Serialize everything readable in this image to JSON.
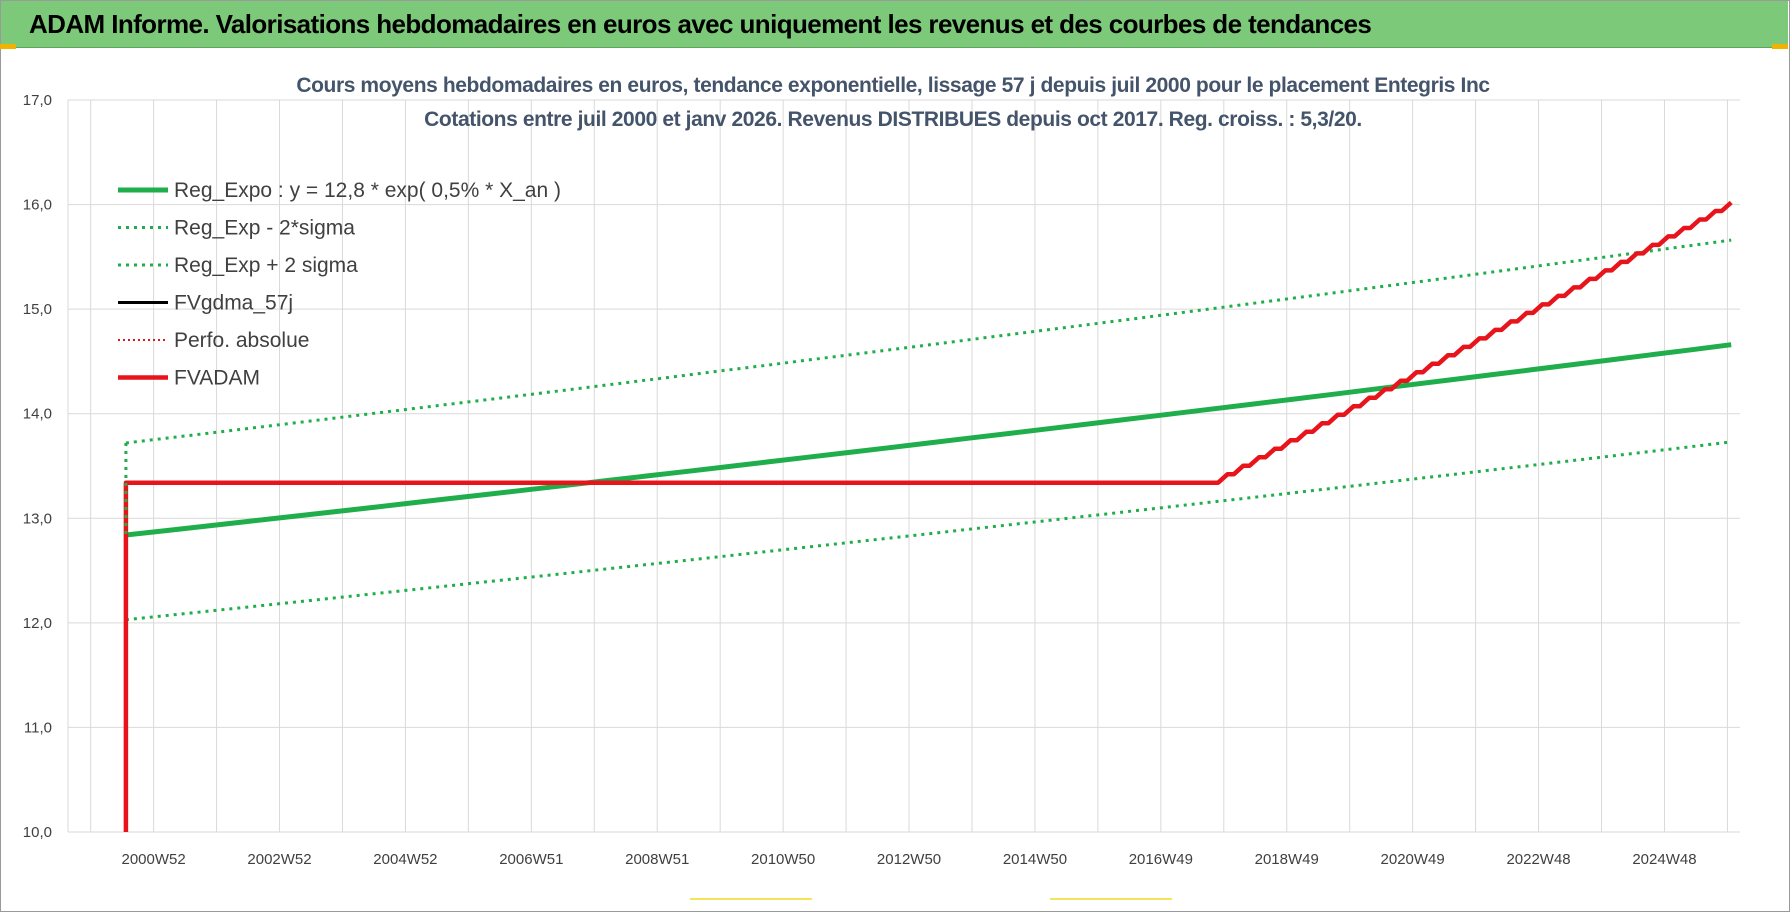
{
  "header": {
    "title": "ADAM Informe. Valorisations hebdomadaires en euros avec uniquement les revenus et des courbes de tendances"
  },
  "chart_data": {
    "type": "line",
    "title_line1": "Cours moyens hebdomadaires en euros, tendance exponentielle, lissage 57 j depuis juil 2000 pour le placement Entegris Inc",
    "title_line2": "Cotations entre juil 2000 et janv 2026. Revenus DISTRIBUES depuis oct 2017. Reg. croiss. : 5,3/20.",
    "ylim": [
      10,
      17
    ],
    "y_ticks": [
      "10,0",
      "11,0",
      "12,0",
      "13,0",
      "14,0",
      "15,0",
      "16,0",
      "17,0"
    ],
    "x_ticks": [
      "2000W52",
      "2002W52",
      "2004W52",
      "2006W51",
      "2008W51",
      "2010W50",
      "2012W50",
      "2014W50",
      "2016W49",
      "2018W49",
      "2020W49",
      "2022W48",
      "2024W48"
    ],
    "grid": true,
    "legend_position": "top-left",
    "colors": {
      "green": "#1fae4b",
      "red": "#e8141c",
      "black": "#000000",
      "grid": "#d9d9d9"
    },
    "series": [
      {
        "name": "Reg_Expo : y = 12,8 * exp( 0,5% *  X_an )",
        "style": "solid-green-thick",
        "x": [
          "2000-07",
          "2026-01"
        ],
        "y": [
          12.84,
          14.66
        ]
      },
      {
        "name": "Reg_Exp - 2*sigma",
        "style": "dotted-green",
        "x": [
          "2000-07",
          "2026-01"
        ],
        "y": [
          12.03,
          13.73
        ]
      },
      {
        "name": "Reg_Exp + 2 sigma",
        "style": "dotted-green",
        "x": [
          "2000-07",
          "2026-01"
        ],
        "y": [
          13.72,
          15.66
        ]
      },
      {
        "name": "FVgdma_57j",
        "style": "solid-black",
        "x": [],
        "y": []
      },
      {
        "name": "Perfo. absolue",
        "style": "dotted-red",
        "x": [],
        "y": []
      },
      {
        "name": "FVADAM",
        "style": "solid-red-thick",
        "x": [
          "2000-07",
          "2000-07",
          "2017-10",
          "2026-01"
        ],
        "y": [
          10.0,
          13.34,
          13.34,
          16.02
        ]
      }
    ]
  }
}
